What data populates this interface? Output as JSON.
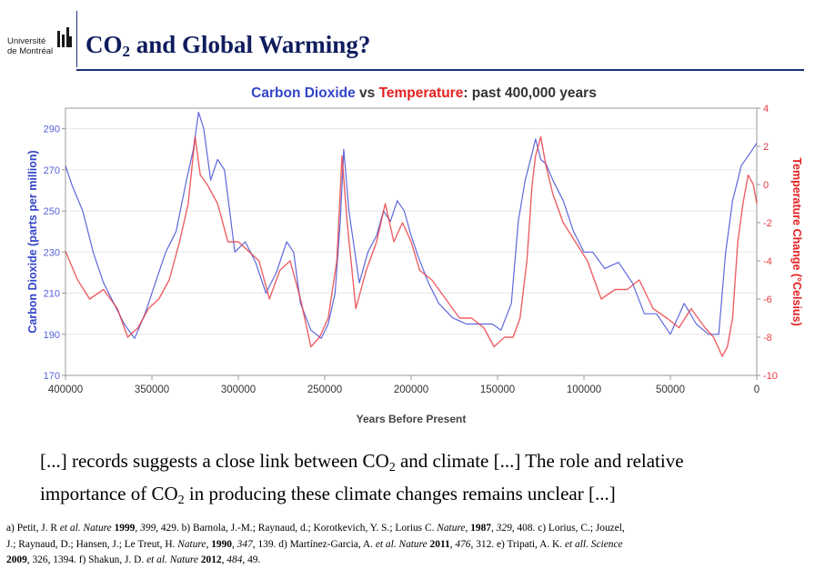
{
  "header": {
    "logo_line1": "Université",
    "logo_line2": "de Montréal",
    "title_pre": "CO",
    "title_sub": "2",
    "title_post": " and Global Warming?"
  },
  "chart_data": {
    "type": "line",
    "title_part1": "Carbon Dioxide",
    "title_part2": " vs ",
    "title_part3": "Temperature",
    "title_part4": ": past 400,000 years",
    "xlabel": "Years Before Present",
    "ylabel_left": "Carbon Dioxide (parts per million)",
    "ylabel_right": "Temperature Change (°Celsius)",
    "xlim": [
      400000,
      0
    ],
    "ylim_left": [
      170,
      300
    ],
    "ylim_right": [
      -10,
      4
    ],
    "x_ticks": [
      "400000",
      "350000",
      "300000",
      "250000",
      "200000",
      "150000",
      "100000",
      "50000",
      "0"
    ],
    "y_ticks_left": [
      "170",
      "190",
      "210",
      "230",
      "250",
      "270",
      "290"
    ],
    "y_ticks_right": [
      "-10",
      "-8",
      "-6",
      "-4",
      "-2",
      "0",
      "2",
      "4"
    ],
    "colors": {
      "co2": "#5560d8",
      "temp": "#e8383f",
      "co2_title": "#3344c8",
      "temp_title": "#e52020",
      "axis": "#999999"
    },
    "series": [
      {
        "name": "Carbon Dioxide",
        "axis": "left",
        "x": [
          0,
          4000,
          9000,
          11000,
          14000,
          18000,
          22000,
          28000,
          35000,
          42000,
          50000,
          58000,
          65000,
          72000,
          80000,
          88000,
          95000,
          100000,
          106000,
          112000,
          118000,
          122000,
          125000,
          128000,
          130000,
          134000,
          138000,
          142000,
          148000,
          153000,
          160000,
          168000,
          176000,
          184000,
          190000,
          196000,
          200000,
          204000,
          208000,
          212000,
          216000,
          220000,
          225000,
          230000,
          236000,
          239000,
          241000,
          244000,
          248000,
          252000,
          258000,
          264000,
          268000,
          272000,
          278000,
          284000,
          290000,
          296000,
          302000,
          308000,
          312000,
          316000,
          320000,
          323000,
          326000,
          330000,
          336000,
          342000,
          348000,
          354000,
          360000,
          366000,
          372000,
          378000,
          384000,
          390000,
          396000,
          400000
        ],
        "values": [
          283,
          278,
          272,
          265,
          255,
          230,
          190,
          190,
          195,
          205,
          190,
          200,
          200,
          215,
          225,
          222,
          230,
          230,
          240,
          255,
          265,
          273,
          275,
          285,
          278,
          265,
          245,
          205,
          192,
          195,
          195,
          195,
          198,
          205,
          215,
          228,
          238,
          250,
          255,
          245,
          250,
          238,
          230,
          215,
          250,
          280,
          245,
          210,
          195,
          188,
          192,
          205,
          230,
          235,
          220,
          210,
          225,
          235,
          230,
          270,
          275,
          265,
          290,
          298,
          280,
          265,
          240,
          230,
          215,
          200,
          188,
          195,
          205,
          215,
          230,
          250,
          262,
          272
        ]
      },
      {
        "name": "Temperature",
        "axis": "right",
        "x": [
          0,
          2000,
          5000,
          8000,
          11000,
          14000,
          17000,
          20000,
          25000,
          30000,
          38000,
          45000,
          52000,
          60000,
          68000,
          75000,
          82000,
          90000,
          98000,
          105000,
          112000,
          118000,
          122000,
          125000,
          128000,
          130000,
          133000,
          137000,
          141000,
          146000,
          152000,
          158000,
          165000,
          172000,
          180000,
          188000,
          195000,
          200000,
          205000,
          210000,
          215000,
          220000,
          226000,
          232000,
          237000,
          240000,
          243000,
          248000,
          253000,
          258000,
          264000,
          270000,
          276000,
          282000,
          288000,
          294000,
          300000,
          306000,
          312000,
          318000,
          322000,
          325000,
          329000,
          334000,
          340000,
          346000,
          352000,
          358000,
          364000,
          370000,
          378000,
          386000,
          393000,
          400000
        ],
        "values": [
          -1,
          0,
          0.5,
          -1,
          -3,
          -7,
          -8.5,
          -9,
          -8,
          -7.5,
          -6.5,
          -7.5,
          -7,
          -6.5,
          -5,
          -5.5,
          -5.5,
          -6,
          -4,
          -3,
          -2,
          -0.5,
          1,
          2.5,
          1.5,
          0,
          -4,
          -7,
          -8,
          -8,
          -8.5,
          -7.5,
          -7,
          -7,
          -6,
          -5,
          -4.5,
          -3,
          -2,
          -3,
          -1,
          -3,
          -4.5,
          -6.5,
          -2,
          1.5,
          -4,
          -7,
          -8,
          -8.5,
          -6,
          -4,
          -4.5,
          -6,
          -4,
          -3.5,
          -3,
          -3,
          -1,
          0,
          0.5,
          2.5,
          -1,
          -3,
          -5,
          -6,
          -6.5,
          -7.5,
          -8,
          -6.5,
          -5.5,
          -6,
          -5,
          -3.5
        ]
      }
    ]
  },
  "quote": {
    "line1_a": "[...] records suggests a close link between CO",
    "line1_sub": "2",
    "line1_b": " and climate [...] The role and relative",
    "line2_a": "importance of CO",
    "line2_sub": "2",
    "line2_b": " in producing these climate changes remains unclear [...]"
  },
  "refs": {
    "a1": "a) Petit, J. R ",
    "a2": "et al.",
    "a3": " ",
    "a4": "Nature",
    "a5": " ",
    "a6": "1999",
    "a7": ", ",
    "a8": "399",
    "a9": ", 429. b) Barnola, J.-M.; Raynaud, d.; Korotkevich, Y. S.; Lorius C. ",
    "a10": "Nature",
    "a11": ", ",
    "a12": "1987",
    "a13": ", ",
    "a14": "329,",
    "a15": " 408. c) Lorius, C.; Jouzel,",
    "b1": "J.; Raynaud, D.; Hansen, J.; Le Treut, H. ",
    "b2": "Nature",
    "b3": ", ",
    "b4": "1990",
    "b5": ", ",
    "b6": "347",
    "b7": ", 139. d) Martínez-Garcia, A. ",
    "b8": "et al.",
    "b9": " ",
    "b10": "Nature",
    "b11": " ",
    "b12": "2011",
    "b13": ", ",
    "b14": "476",
    "b15": ", 312. e) Tripati, A. K. ",
    "b16": "et all.",
    "b17": " ",
    "b18": "Science",
    "c1": "2009",
    "c2": ", 326, 1394. f) Shakun, J. D. ",
    "c3": "et al.",
    "c4": " ",
    "c5": "Nature",
    "c6": " ",
    "c7": "2012",
    "c8": ", ",
    "c9": "484",
    "c10": ", 49."
  }
}
